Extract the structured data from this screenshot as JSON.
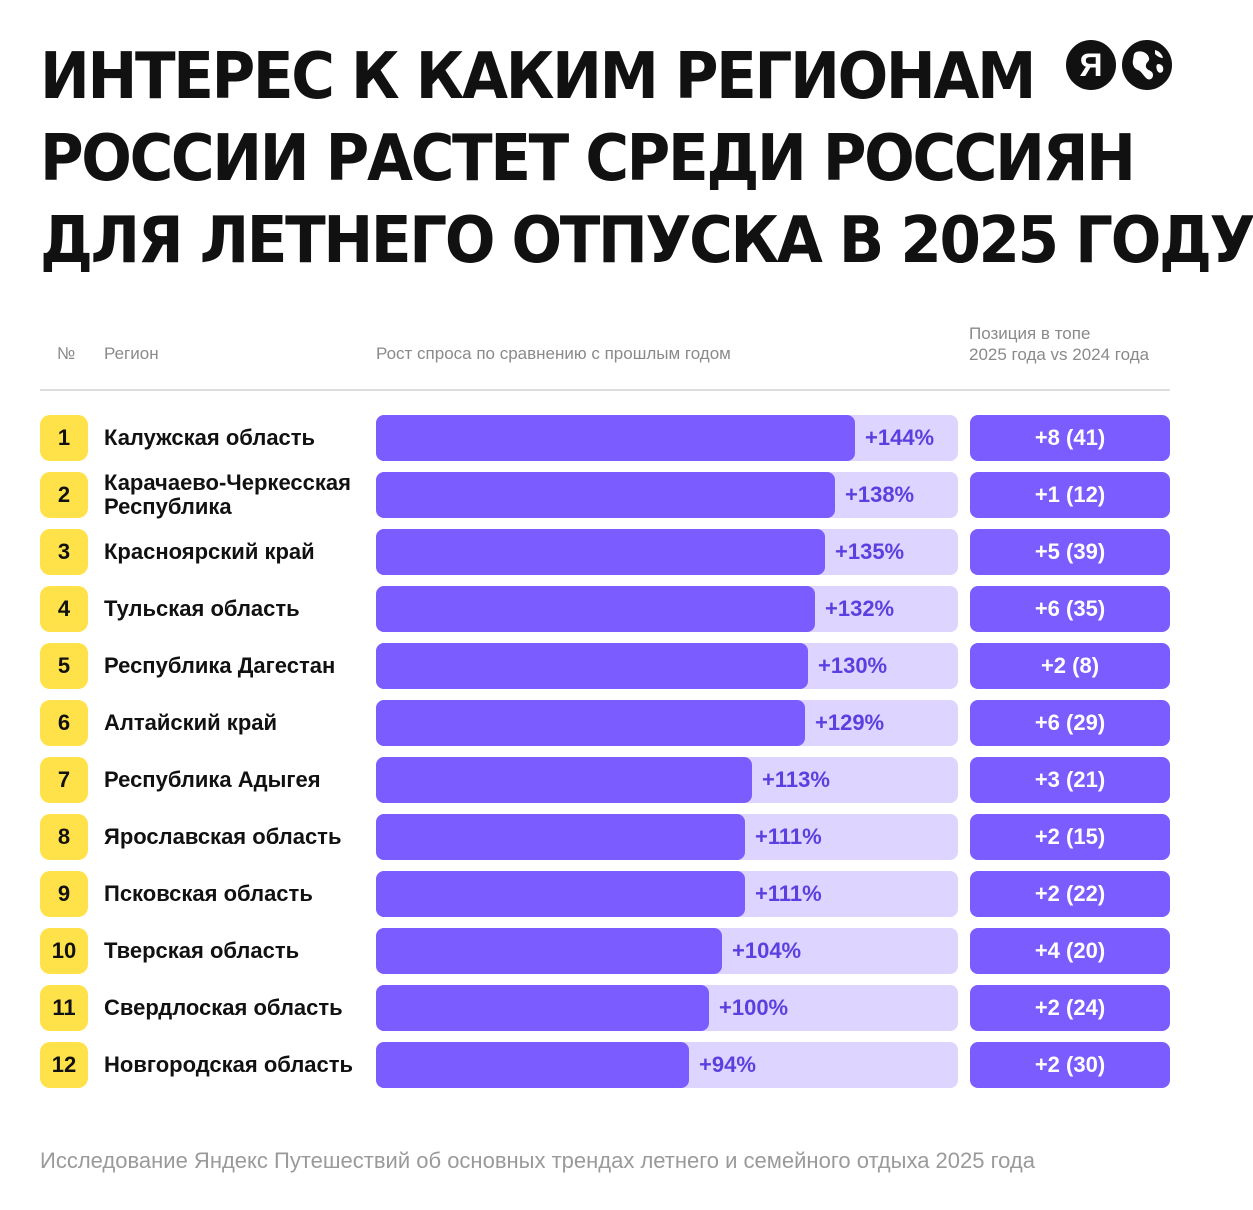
{
  "title": {
    "line1": "ИНТЕРЕС К КАКИМ РЕГИОНАМ",
    "line2": "РОССИИ РАСТЕТ СРЕДИ РОССИЯН",
    "line3": "ДЛЯ ЛЕТНЕГО ОТПУСКА В 2025 ГОДУ"
  },
  "logos": {
    "ya_letter": "Я"
  },
  "header": {
    "num": "№",
    "region": "Регион",
    "growth": "Рост спроса по сравнению с прошлым годом",
    "position_line1": "Позиция в топе",
    "position_line2": "2025 года vs 2024 года"
  },
  "footer": "Исследование Яндекс Путешествий об основных трендах летнего и семейного отдыха 2025 года",
  "colors": {
    "bar": "#7a5cff",
    "track": "#ddd4ff",
    "pct_text": "#5b3fe0",
    "rank_badge": "#ffe14a"
  },
  "chart_data": {
    "type": "bar",
    "orientation": "horizontal",
    "title": "ИНТЕРЕС К КАКИМ РЕГИОНАМ РОССИИ РАСТЕТ СРЕДИ РОССИЯН ДЛЯ ЛЕТНЕГО ОТПУСКА В 2025 ГОДУ",
    "value_label": "Рост спроса по сравнению с прошлым годом",
    "unit": "%",
    "xlim": [
      0,
      175
    ],
    "rows": [
      {
        "rank": "1",
        "region": "Калужская область",
        "growth": 144,
        "growth_label": "+144%",
        "position": "+8 (41)"
      },
      {
        "rank": "2",
        "region": "Карачаево-Черкесская Республика",
        "growth": 138,
        "growth_label": "+138%",
        "position": "+1 (12)"
      },
      {
        "rank": "3",
        "region": "Красноярский край",
        "growth": 135,
        "growth_label": "+135%",
        "position": "+5 (39)"
      },
      {
        "rank": "4",
        "region": "Тульская область",
        "growth": 132,
        "growth_label": "+132%",
        "position": "+6 (35)"
      },
      {
        "rank": "5",
        "region": "Республика Дагестан",
        "growth": 130,
        "growth_label": "+130%",
        "position": "+2 (8)"
      },
      {
        "rank": "6",
        "region": "Алтайский край",
        "growth": 129,
        "growth_label": "+129%",
        "position": "+6 (29)"
      },
      {
        "rank": "7",
        "region": "Республика Адыгея",
        "growth": 113,
        "growth_label": "+113%",
        "position": "+3 (21)"
      },
      {
        "rank": "8",
        "region": "Ярославская область",
        "growth": 111,
        "growth_label": "+111%",
        "position": "+2 (15)"
      },
      {
        "rank": "9",
        "region": "Псковская область",
        "growth": 111,
        "growth_label": "+111%",
        "position": "+2 (22)"
      },
      {
        "rank": "10",
        "region": "Тверская область",
        "growth": 104,
        "growth_label": "+104%",
        "position": "+4 (20)"
      },
      {
        "rank": "11",
        "region": "Свердлоская область",
        "growth": 100,
        "growth_label": "+100%",
        "position": "+2 (24)"
      },
      {
        "rank": "12",
        "region": "Новгородская область",
        "growth": 94,
        "growth_label": "+94%",
        "position": "+2 (30)"
      }
    ]
  }
}
